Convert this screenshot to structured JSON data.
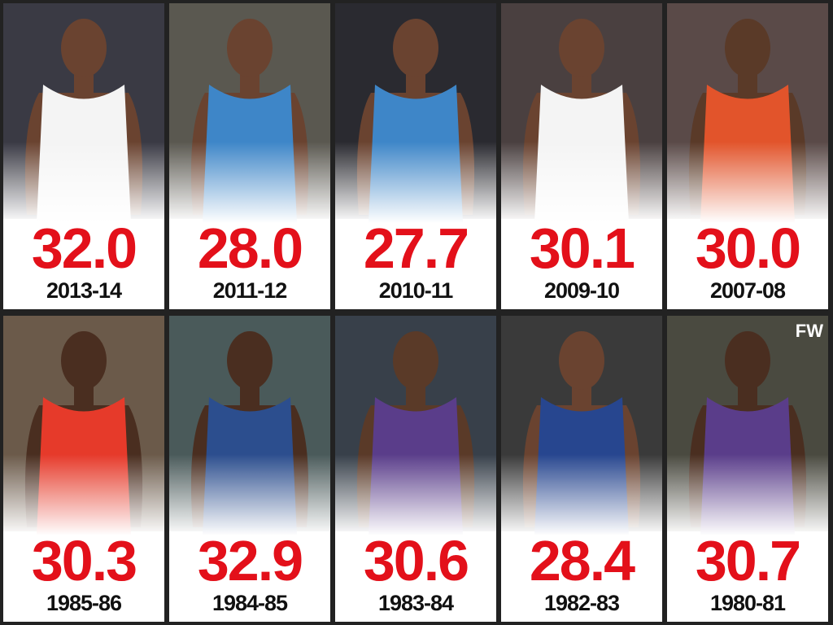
{
  "cards": [
    {
      "value": "32.0",
      "season": "2013-14"
    },
    {
      "value": "28.0",
      "season": "2011-12"
    },
    {
      "value": "27.7",
      "season": "2010-11"
    },
    {
      "value": "30.1",
      "season": "2009-10"
    },
    {
      "value": "30.0",
      "season": "2007-08"
    },
    {
      "value": "30.3",
      "season": "1985-86"
    },
    {
      "value": "32.9",
      "season": "1984-85"
    },
    {
      "value": "30.6",
      "season": "1983-84"
    },
    {
      "value": "28.4",
      "season": "1982-83"
    },
    {
      "value": "30.7",
      "season": "1980-81"
    }
  ],
  "logo": "FW"
}
